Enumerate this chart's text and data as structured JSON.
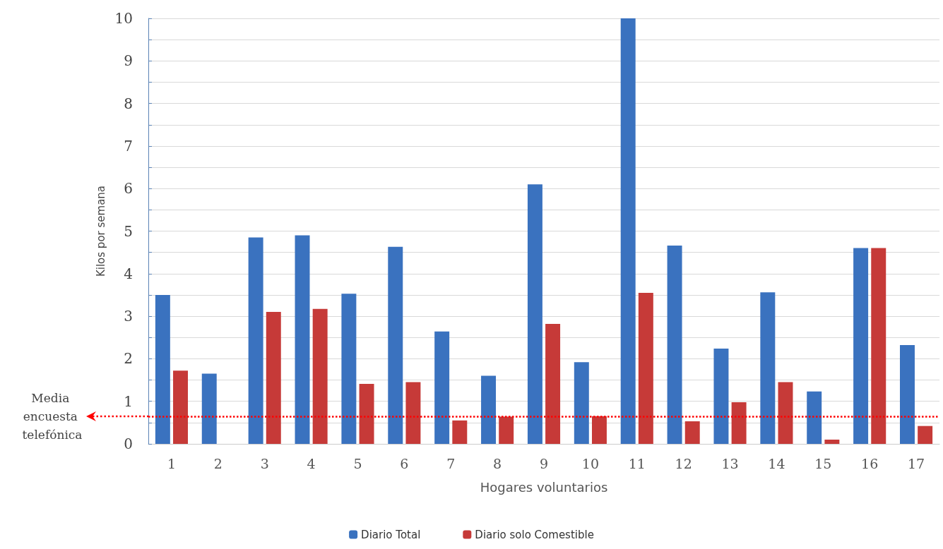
{
  "chart_data": {
    "type": "bar",
    "xlabel": "Hogares voluntarios",
    "ylabel": "Kilos por semana",
    "categories": [
      "1",
      "2",
      "3",
      "4",
      "5",
      "6",
      "7",
      "8",
      "9",
      "10",
      "11",
      "12",
      "13",
      "14",
      "15",
      "16",
      "17"
    ],
    "series": [
      {
        "name": "Diario Total",
        "color": "#3a72bf",
        "values": [
          3.5,
          1.65,
          4.85,
          4.9,
          3.53,
          4.63,
          2.64,
          1.6,
          6.1,
          1.92,
          10,
          4.66,
          2.24,
          3.56,
          1.23,
          4.6,
          2.32
        ]
      },
      {
        "name": "Diario solo Comestible",
        "color": "#c63a38",
        "values": [
          1.72,
          null,
          3.1,
          3.17,
          1.41,
          1.45,
          0.55,
          0.64,
          2.82,
          0.65,
          3.55,
          0.53,
          0.98,
          1.45,
          0.1,
          4.6,
          0.42
        ]
      }
    ],
    "ylim": [
      0,
      10
    ],
    "yticks": [
      0,
      {
        "value": 0.5,
        "label": null
      },
      1,
      {
        "value": 1.5,
        "label": null
      },
      2,
      {
        "value": 2.5,
        "label": null
      },
      3,
      {
        "value": 3.5,
        "label": null
      },
      4,
      {
        "value": 4.5,
        "label": null
      },
      5,
      {
        "value": 5.5,
        "label": null
      },
      6,
      {
        "value": 6.5,
        "label": null
      },
      7,
      {
        "value": 7.5,
        "label": null
      },
      8,
      {
        "value": 8.5,
        "label": null
      },
      9,
      {
        "value": 9.5,
        "label": null
      },
      10
    ],
    "ref_lines": [
      {
        "axis": "y",
        "value": 0.64,
        "label": "Media encuesta telefónica",
        "color": "#ff0000",
        "line_style": "dotted"
      }
    ],
    "grid": "y",
    "legend": "bottom"
  }
}
